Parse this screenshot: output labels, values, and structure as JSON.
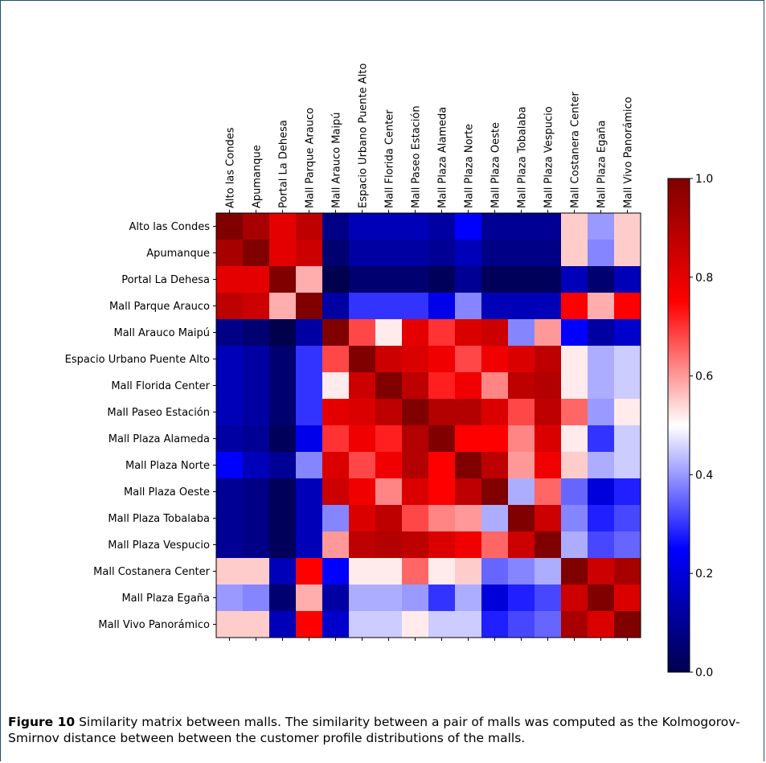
{
  "chart_data": {
    "type": "heatmap",
    "title": "",
    "xlabel": "",
    "ylabel": "",
    "x_categories": [
      "Alto las Condes",
      "Apumanque",
      "Portal La Dehesa",
      "Mall Parque Arauco",
      "Mall Arauco Maipú",
      "Espacio Urbano Puente Alto",
      "Mall Florida Center",
      "Mall Paseo Estación",
      "Mall Plaza Alameda",
      "Mall Plaza Norte",
      "Mall Plaza Oeste",
      "Mall Plaza Tobalaba",
      "Mall Plaza Vespucio",
      "Mall Costanera Center",
      "Mall Plaza Egaña",
      "Mall Vivo Panorámico"
    ],
    "y_categories": [
      "Alto las Condes",
      "Apumanque",
      "Portal La Dehesa",
      "Mall Parque Arauco",
      "Mall Arauco Maipú",
      "Espacio Urbano Puente Alto",
      "Mall Florida Center",
      "Mall Paseo Estación",
      "Mall Plaza Alameda",
      "Mall Plaza Norte",
      "Mall Plaza Oeste",
      "Mall Plaza Tobalaba",
      "Mall Plaza Vespucio",
      "Mall Costanera Center",
      "Mall Plaza Egaña",
      "Mall Vivo Panorámico"
    ],
    "values": [
      [
        1.0,
        0.92,
        0.8,
        0.88,
        0.08,
        0.15,
        0.15,
        0.15,
        0.12,
        0.25,
        0.1,
        0.1,
        0.1,
        0.55,
        0.4,
        0.55
      ],
      [
        0.92,
        1.0,
        0.8,
        0.85,
        0.05,
        0.12,
        0.12,
        0.12,
        0.1,
        0.15,
        0.08,
        0.08,
        0.08,
        0.55,
        0.38,
        0.55
      ],
      [
        0.8,
        0.8,
        1.0,
        0.58,
        0.0,
        0.05,
        0.05,
        0.05,
        0.02,
        0.1,
        0.02,
        0.02,
        0.02,
        0.15,
        0.05,
        0.15
      ],
      [
        0.88,
        0.85,
        0.58,
        1.0,
        0.12,
        0.3,
        0.3,
        0.3,
        0.22,
        0.38,
        0.15,
        0.15,
        0.15,
        0.75,
        0.58,
        0.75
      ],
      [
        0.08,
        0.05,
        0.0,
        0.12,
        1.0,
        0.68,
        0.52,
        0.8,
        0.7,
        0.82,
        0.85,
        0.38,
        0.6,
        0.25,
        0.12,
        0.18
      ],
      [
        0.15,
        0.12,
        0.05,
        0.3,
        0.68,
        1.0,
        0.85,
        0.82,
        0.78,
        0.68,
        0.78,
        0.82,
        0.88,
        0.52,
        0.42,
        0.45
      ],
      [
        0.15,
        0.12,
        0.05,
        0.3,
        0.52,
        0.85,
        1.0,
        0.88,
        0.72,
        0.78,
        0.62,
        0.88,
        0.9,
        0.52,
        0.42,
        0.45
      ],
      [
        0.15,
        0.12,
        0.05,
        0.3,
        0.8,
        0.82,
        0.88,
        1.0,
        0.9,
        0.9,
        0.82,
        0.68,
        0.88,
        0.65,
        0.4,
        0.52
      ],
      [
        0.12,
        0.1,
        0.02,
        0.22,
        0.7,
        0.78,
        0.72,
        0.9,
        1.0,
        0.75,
        0.75,
        0.62,
        0.82,
        0.52,
        0.3,
        0.45
      ],
      [
        0.25,
        0.15,
        0.1,
        0.38,
        0.82,
        0.68,
        0.78,
        0.9,
        0.75,
        1.0,
        0.88,
        0.6,
        0.78,
        0.55,
        0.42,
        0.45
      ],
      [
        0.1,
        0.08,
        0.02,
        0.15,
        0.85,
        0.78,
        0.62,
        0.82,
        0.75,
        0.88,
        1.0,
        0.42,
        0.65,
        0.35,
        0.2,
        0.28
      ],
      [
        0.1,
        0.08,
        0.02,
        0.15,
        0.38,
        0.82,
        0.88,
        0.68,
        0.62,
        0.6,
        0.42,
        1.0,
        0.85,
        0.38,
        0.28,
        0.32
      ],
      [
        0.1,
        0.08,
        0.02,
        0.15,
        0.6,
        0.88,
        0.9,
        0.88,
        0.82,
        0.78,
        0.65,
        0.85,
        1.0,
        0.42,
        0.32,
        0.35
      ],
      [
        0.55,
        0.55,
        0.15,
        0.75,
        0.25,
        0.52,
        0.52,
        0.65,
        0.52,
        0.55,
        0.35,
        0.38,
        0.42,
        1.0,
        0.85,
        0.92
      ],
      [
        0.4,
        0.38,
        0.05,
        0.58,
        0.12,
        0.42,
        0.42,
        0.4,
        0.3,
        0.42,
        0.2,
        0.28,
        0.32,
        0.85,
        1.0,
        0.82
      ],
      [
        0.55,
        0.55,
        0.15,
        0.75,
        0.18,
        0.45,
        0.45,
        0.52,
        0.45,
        0.45,
        0.28,
        0.32,
        0.35,
        0.92,
        0.82,
        1.0
      ]
    ],
    "colormap": "seismic",
    "colorbar": {
      "min": 0.0,
      "max": 1.0,
      "ticks": [
        "0.0",
        "0.2",
        "0.4",
        "0.6",
        "0.8",
        "1.0"
      ]
    },
    "legend": "none",
    "grid": false
  },
  "caption": {
    "label": "Figure 10",
    "text": "Similarity matrix between malls. The similarity between a pair of malls was computed as the Kolmogorov-Smirnov distance between between the customer profile distributions of the malls."
  }
}
